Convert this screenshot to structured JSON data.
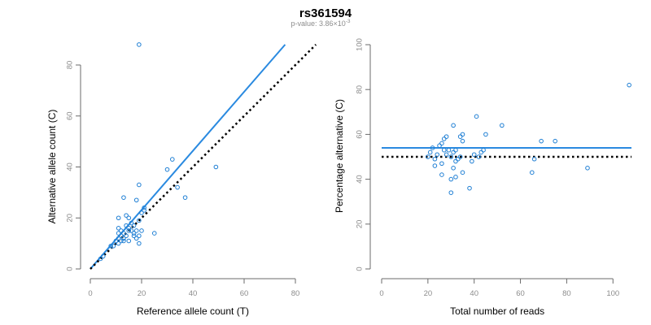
{
  "title": "rs361594",
  "subtitle": {
    "prefix": "p-value: 3.86×10",
    "exponent": "-3"
  },
  "colors": {
    "point": "#1f7fd4",
    "fit": "#2a8ae0",
    "reference": "#000000",
    "axis": "#6b6b6b",
    "tick_text": "#8c8c8c"
  },
  "chart_data": [
    {
      "type": "scatter",
      "title": "",
      "xlabel": "Reference allele count (T)",
      "ylabel": "Alternative allele count (C)",
      "xlim": [
        0,
        80
      ],
      "ylim": [
        0,
        80
      ],
      "xticks": [
        0,
        20,
        40,
        60,
        80
      ],
      "yticks": [
        0,
        20,
        40,
        60,
        80
      ],
      "grid": false,
      "points": [
        [
          4,
          4
        ],
        [
          5,
          5
        ],
        [
          8,
          9
        ],
        [
          9,
          9
        ],
        [
          10,
          11
        ],
        [
          11,
          10
        ],
        [
          11,
          12
        ],
        [
          11,
          14
        ],
        [
          11,
          16
        ],
        [
          11,
          20
        ],
        [
          12,
          11
        ],
        [
          12,
          13
        ],
        [
          12,
          15
        ],
        [
          13,
          12
        ],
        [
          13,
          11
        ],
        [
          13,
          14
        ],
        [
          13,
          28
        ],
        [
          14,
          17
        ],
        [
          14,
          21
        ],
        [
          14,
          13
        ],
        [
          15,
          15
        ],
        [
          15,
          20
        ],
        [
          15,
          11
        ],
        [
          15,
          16
        ],
        [
          16,
          18
        ],
        [
          16,
          15
        ],
        [
          17,
          17
        ],
        [
          17,
          13
        ],
        [
          17,
          14
        ],
        [
          18,
          27
        ],
        [
          18,
          12
        ],
        [
          18,
          15
        ],
        [
          19,
          33
        ],
        [
          19,
          10
        ],
        [
          19,
          19
        ],
        [
          19,
          13
        ],
        [
          20,
          15
        ],
        [
          20,
          22
        ],
        [
          21,
          24
        ],
        [
          21,
          23
        ],
        [
          25,
          14
        ],
        [
          30,
          39
        ],
        [
          32,
          43
        ],
        [
          34,
          32
        ],
        [
          37,
          28
        ],
        [
          49,
          40
        ],
        [
          19,
          88
        ]
      ],
      "lines": [
        {
          "name": "",
          "kind": "fit",
          "style": "solid",
          "x": [
            0,
            76
          ],
          "y": [
            0,
            88
          ]
        },
        {
          "name": "",
          "kind": "reference",
          "style": "dotted",
          "x": [
            0,
            88
          ],
          "y": [
            0,
            88
          ]
        }
      ]
    },
    {
      "type": "scatter",
      "title": "",
      "xlabel": "Total number of reads",
      "ylabel": "Percentage alternative (C)",
      "xlim": [
        0,
        108
      ],
      "ylim": [
        0,
        100
      ],
      "xticks": [
        0,
        20,
        40,
        60,
        80,
        100
      ],
      "yticks": [
        0,
        20,
        40,
        60,
        80,
        100
      ],
      "grid": false,
      "points": [
        [
          20,
          50
        ],
        [
          21,
          52
        ],
        [
          22,
          54
        ],
        [
          23,
          46
        ],
        [
          23,
          49
        ],
        [
          24,
          51
        ],
        [
          25,
          55
        ],
        [
          26,
          42
        ],
        [
          26,
          56
        ],
        [
          26,
          47
        ],
        [
          27,
          58
        ],
        [
          27,
          53
        ],
        [
          28,
          59
        ],
        [
          28,
          51
        ],
        [
          29,
          53
        ],
        [
          30,
          40
        ],
        [
          30,
          34
        ],
        [
          30,
          50
        ],
        [
          31,
          64
        ],
        [
          31,
          52
        ],
        [
          31,
          45
        ],
        [
          32,
          53
        ],
        [
          32,
          48
        ],
        [
          32,
          41
        ],
        [
          33,
          49
        ],
        [
          34,
          59
        ],
        [
          34,
          50
        ],
        [
          35,
          60
        ],
        [
          35,
          43
        ],
        [
          35,
          57
        ],
        [
          38,
          36
        ],
        [
          39,
          48
        ],
        [
          40,
          51
        ],
        [
          41,
          68
        ],
        [
          42,
          50
        ],
        [
          43,
          52
        ],
        [
          44,
          53
        ],
        [
          45,
          60
        ],
        [
          52,
          64
        ],
        [
          65,
          43
        ],
        [
          66,
          49
        ],
        [
          69,
          57
        ],
        [
          75,
          57
        ],
        [
          89,
          45
        ],
        [
          107,
          82
        ]
      ],
      "lines": [
        {
          "name": "",
          "kind": "fit",
          "style": "solid",
          "x": [
            0,
            108
          ],
          "y": [
            54,
            54
          ]
        },
        {
          "name": "",
          "kind": "reference",
          "style": "dotted",
          "x": [
            0,
            108
          ],
          "y": [
            50,
            50
          ]
        }
      ]
    }
  ]
}
